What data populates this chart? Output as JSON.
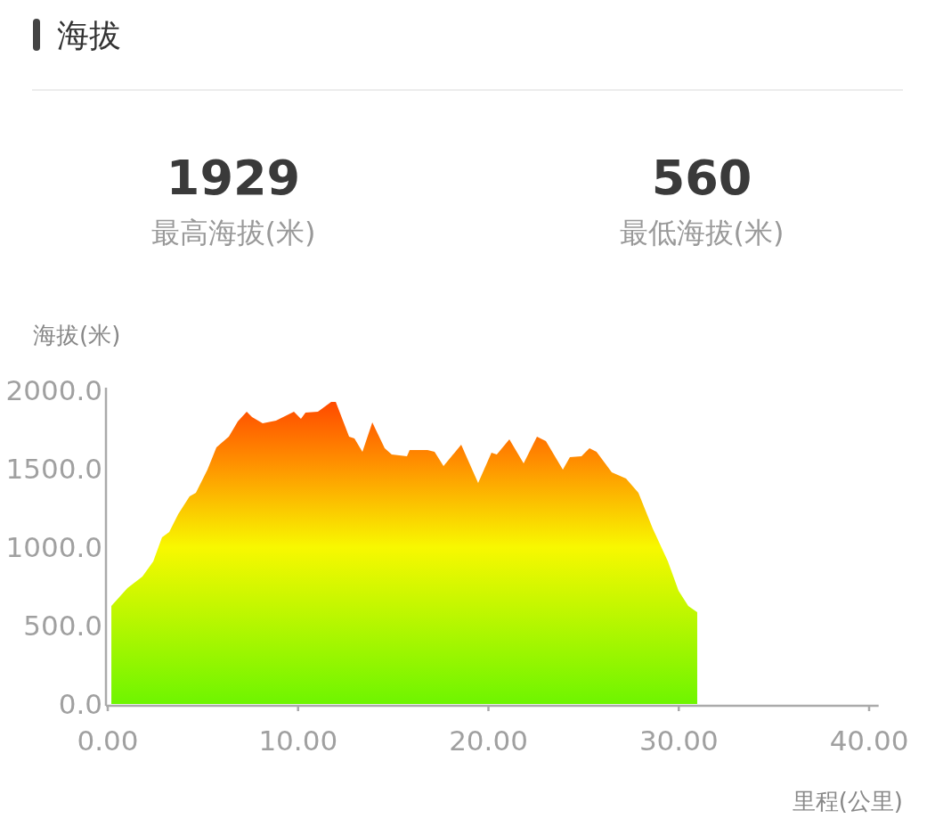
{
  "chart_data": {
    "type": "area",
    "title": "海拔",
    "annotations": [
      "1929",
      "最高海拔(米)",
      "560",
      "最低海拔(米)"
    ],
    "ylabel": "海拔(米)",
    "xlabel": "里程(公里)",
    "xlim": [
      0,
      40.5
    ],
    "ylim": [
      0,
      2000
    ],
    "xticks": [
      {
        "value": 0,
        "label": "0.00"
      },
      {
        "value": 10,
        "label": "10.00"
      },
      {
        "value": 20,
        "label": "20.00"
      },
      {
        "value": 30,
        "label": "30.00"
      },
      {
        "value": 40,
        "label": "40.00"
      }
    ],
    "yticks": [
      {
        "value": 0,
        "label": "0.0"
      },
      {
        "value": 500,
        "label": "500.0"
      },
      {
        "value": 1000,
        "label": "1000.0"
      },
      {
        "value": 1500,
        "label": "1500.0"
      },
      {
        "value": 2000,
        "label": "2000.0"
      }
    ],
    "grid": false,
    "series": [
      {
        "color": "#ff8c00",
        "x": [
          0.19,
          1.03,
          1.82,
          2.39,
          2.85,
          3.23,
          3.7,
          4.3,
          4.63,
          5.24,
          5.71,
          6.36,
          6.83,
          7.3,
          7.58,
          8.14,
          8.84,
          9.78,
          10.15,
          10.39,
          11.04,
          11.74,
          11.98,
          12.68,
          12.96,
          13.38,
          13.9,
          14.55,
          14.92,
          15.72,
          15.86,
          16.8,
          17.17,
          17.64,
          18.57,
          19.46,
          20.16,
          20.44,
          21.1,
          21.85,
          22.55,
          23.02,
          23.91,
          24.28,
          24.89,
          25.31,
          25.68,
          26.48,
          27.23,
          27.88,
          28.63,
          29.43,
          29.99,
          30.5,
          30.97
        ],
        "values": [
          625,
          739,
          813,
          909,
          1062,
          1097,
          1210,
          1324,
          1347,
          1494,
          1636,
          1705,
          1801,
          1864,
          1830,
          1790,
          1807,
          1864,
          1818,
          1858,
          1864,
          1926,
          1926,
          1705,
          1693,
          1608,
          1795,
          1631,
          1591,
          1580,
          1619,
          1619,
          1608,
          1517,
          1653,
          1409,
          1602,
          1591,
          1688,
          1534,
          1705,
          1676,
          1494,
          1574,
          1580,
          1631,
          1608,
          1477,
          1437,
          1347,
          1119,
          909,
          722,
          625,
          585
        ]
      }
    ]
  }
}
